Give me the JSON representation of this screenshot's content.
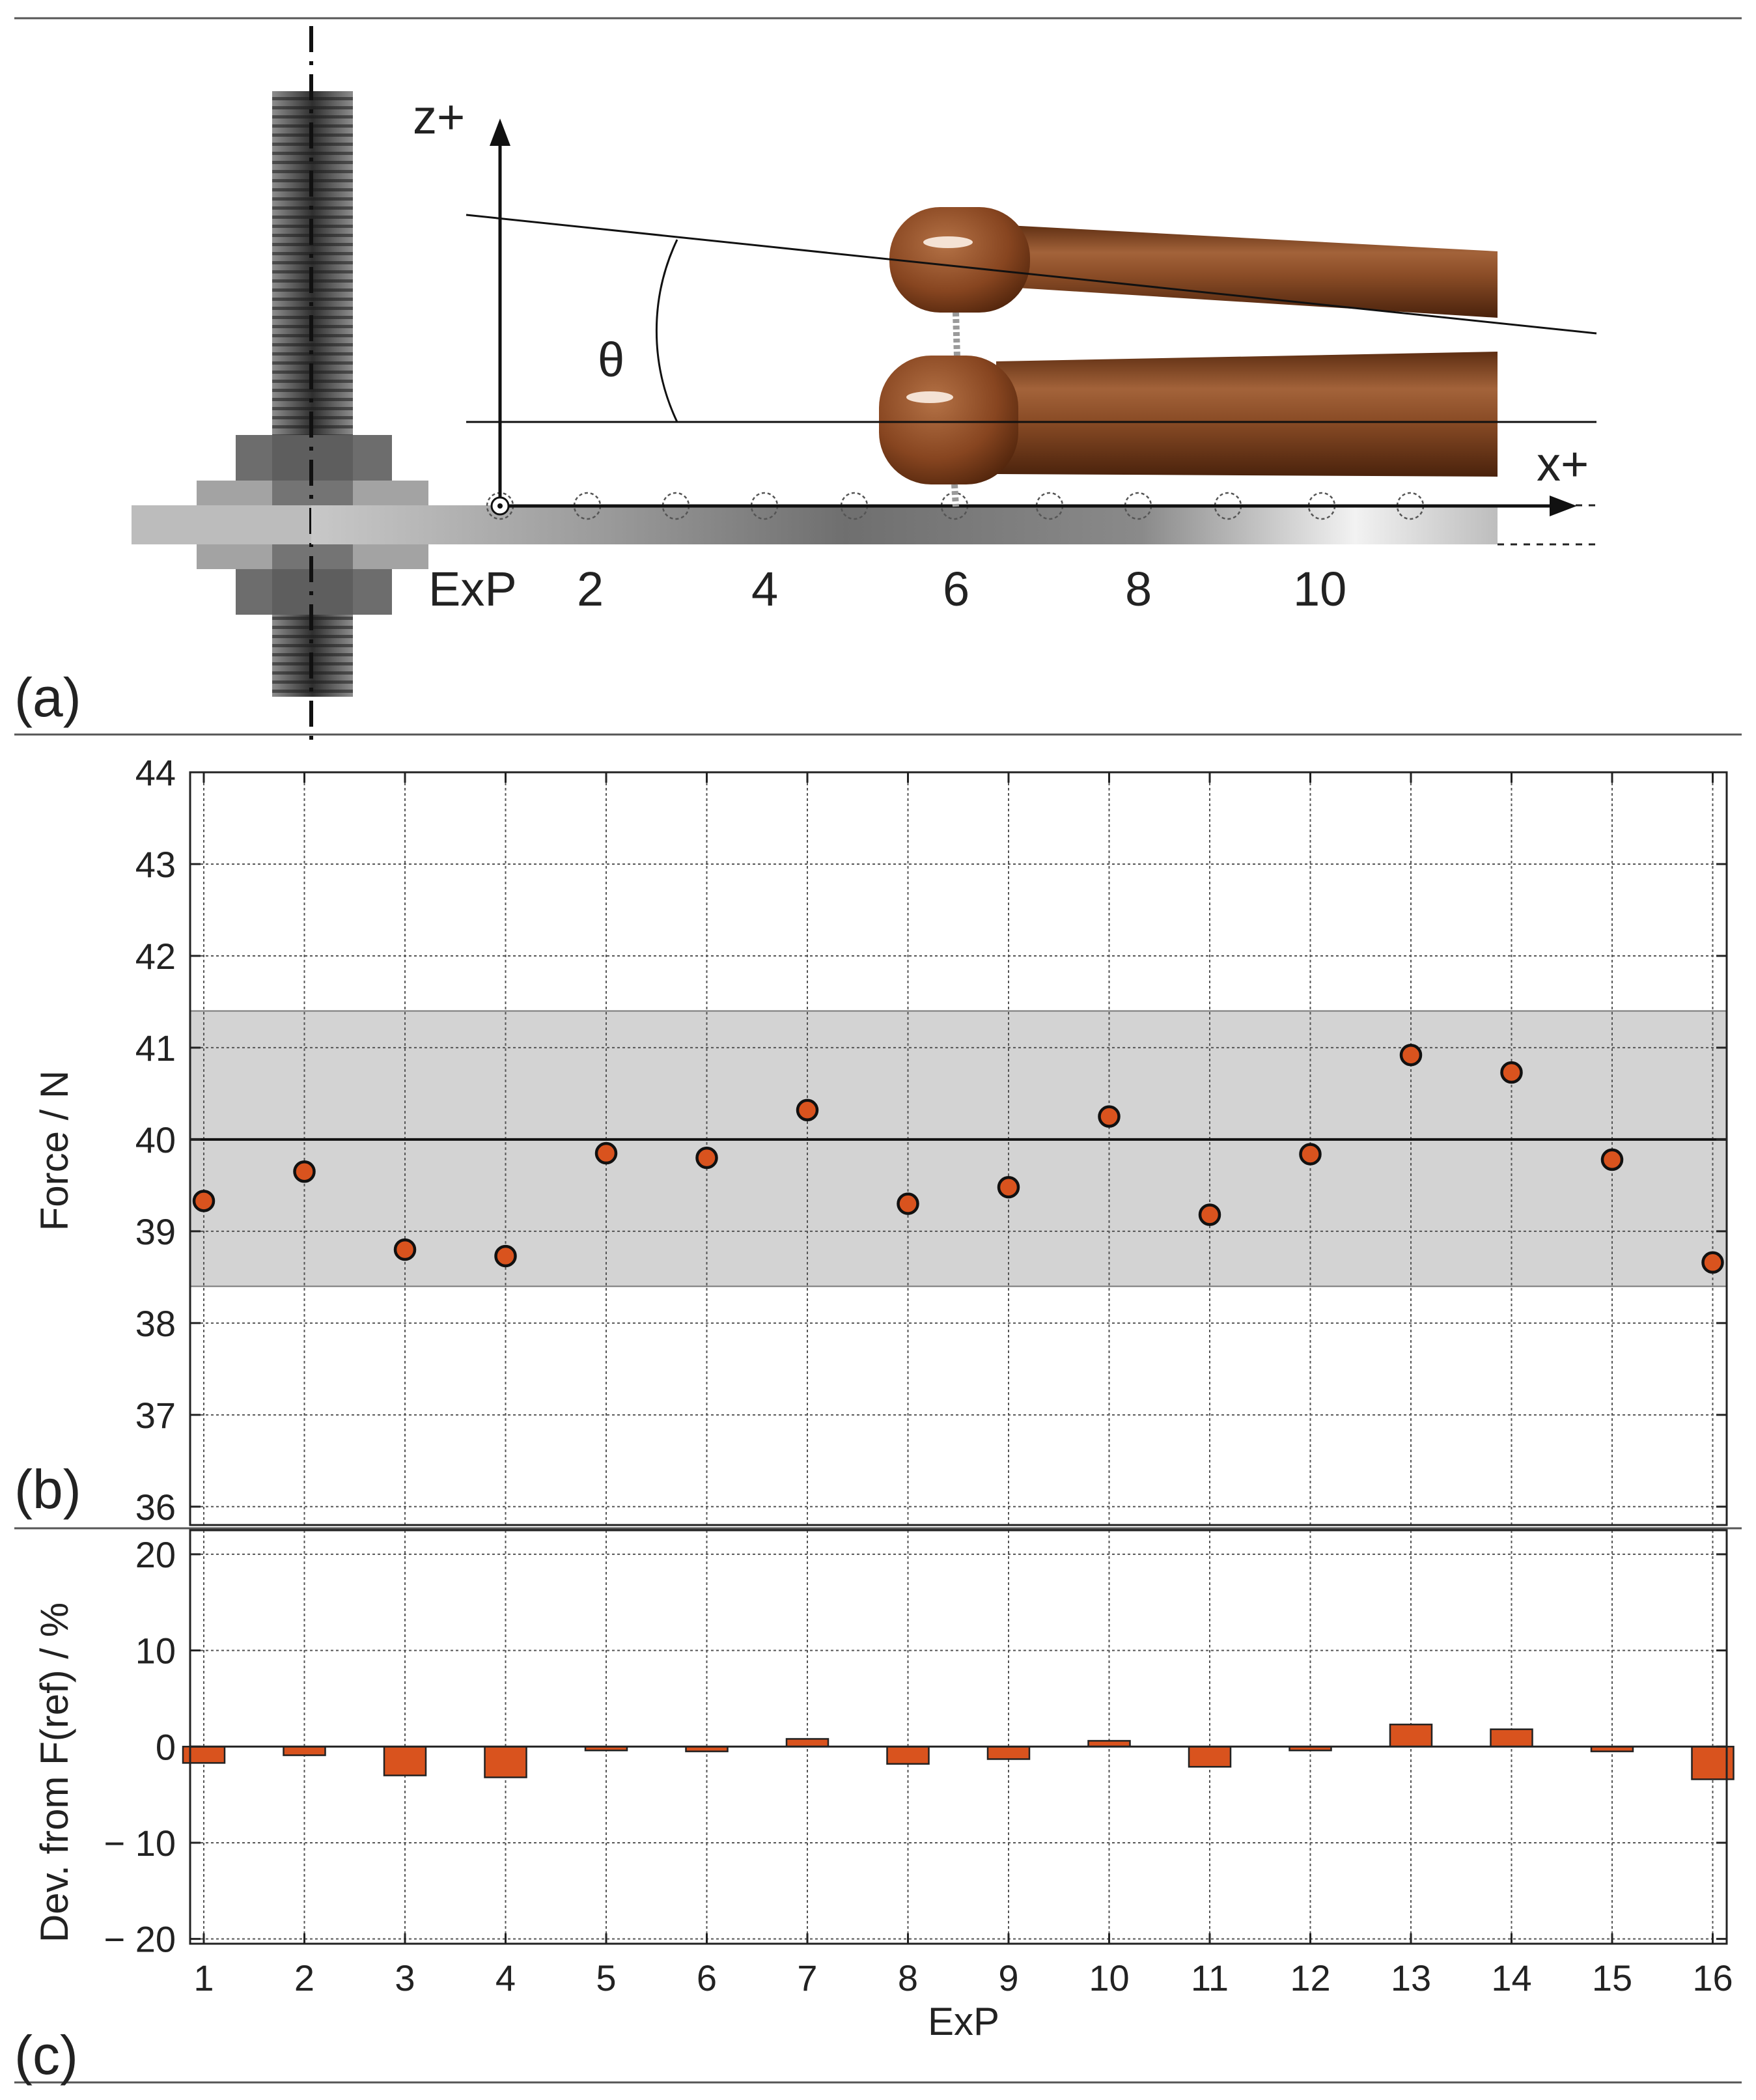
{
  "diagram": {
    "panel_label": "(a)",
    "axis_z_label": "z+",
    "axis_x_label": "x+",
    "angle_label": "θ",
    "position_labels": [
      "ExP",
      "2",
      "4",
      "6",
      "8",
      "10"
    ]
  },
  "chart_data": [
    {
      "type": "scatter",
      "panel_label": "(b)",
      "ylabel": "Force / N",
      "x": [
        1,
        2,
        3,
        4,
        5,
        6,
        7,
        8,
        9,
        10,
        11,
        12,
        13,
        14,
        15,
        16
      ],
      "y": [
        39.33,
        39.65,
        38.8,
        38.73,
        39.85,
        39.8,
        40.32,
        39.3,
        39.48,
        40.25,
        39.18,
        39.84,
        40.92,
        40.73,
        39.78,
        38.66
      ],
      "ylim": [
        35.8,
        44
      ],
      "yticks": [
        36,
        37,
        38,
        39,
        40,
        41,
        42,
        43,
        44
      ],
      "reference": 40,
      "tolerance_band": [
        38.4,
        41.4
      ],
      "grid": true,
      "marker_color": "#d9531e",
      "band_color": "#d3d3d3"
    },
    {
      "type": "bar",
      "panel_label": "(c)",
      "xlabel": "ExP",
      "ylabel": "Dev. from F(ref) / %",
      "categories": [
        "1",
        "2",
        "3",
        "4",
        "5",
        "6",
        "7",
        "8",
        "9",
        "10",
        "11",
        "12",
        "13",
        "14",
        "15",
        "16"
      ],
      "values": [
        -1.7,
        -0.9,
        -3.0,
        -3.2,
        -0.4,
        -0.5,
        0.8,
        -1.8,
        -1.3,
        0.6,
        -2.1,
        -0.4,
        2.3,
        1.8,
        -0.5,
        -3.4
      ],
      "ylim": [
        -20.5,
        22.5
      ],
      "yticks": [
        -20,
        -10,
        0,
        10,
        20
      ],
      "ytick_labels": [
        "− 20",
        "− 10",
        "0",
        "10",
        "20"
      ],
      "grid": true,
      "bar_color": "#d9531e"
    }
  ]
}
